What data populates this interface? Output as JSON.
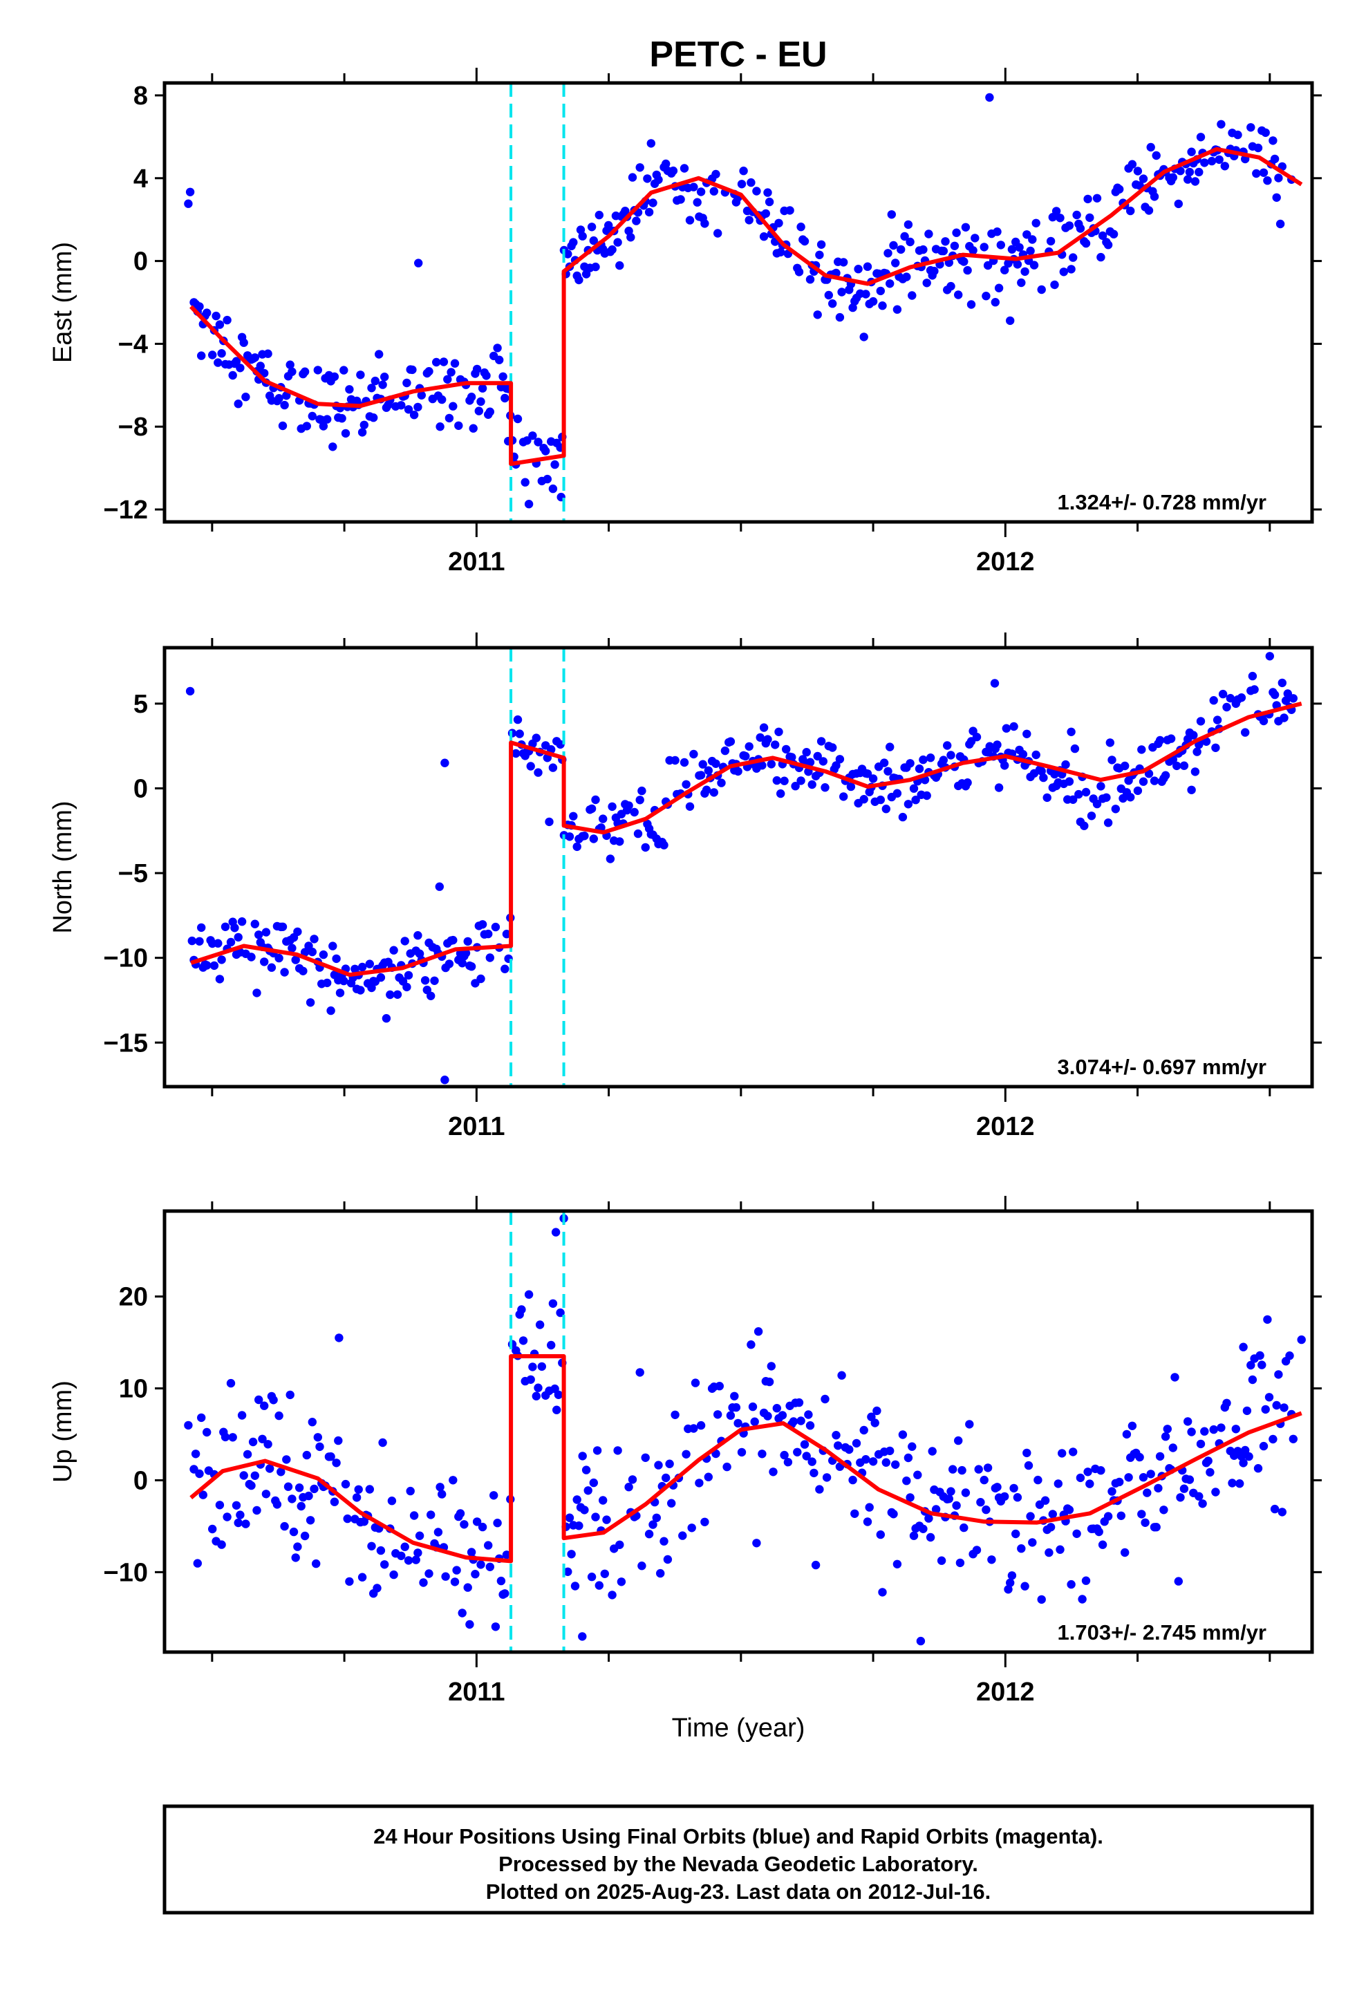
{
  "title": "PETC - EU",
  "colors": {
    "points": "#0000ff",
    "model": "#ff0000",
    "offsets": "#00e5ee",
    "frame": "#000000"
  },
  "xlabel": "Time (year)",
  "x_tick_labels": [
    "2011",
    "2012"
  ],
  "offset_epochs": [
    2011.065,
    2011.165
  ],
  "footer": [
    "24 Hour Positions Using Final Orbits (blue) and Rapid Orbits (magenta).",
    "Processed by the Nevada Geodetic Laboratory.",
    "Plotted on 2025-Aug-23. Last data on 2012-Jul-16."
  ],
  "chart_data": [
    {
      "type": "scatter",
      "ylabel": "East (mm)",
      "xlim": [
        2010.41,
        2012.58
      ],
      "ylim": [
        -12.6,
        8.6
      ],
      "yticks": [
        8,
        4,
        0,
        -4,
        -8,
        -12
      ],
      "rate_label": "1.324+/- 0.728 mm/yr",
      "scatter_amp": 0.9,
      "outliers": [
        [
          2010.89,
          -0.1
        ],
        [
          2011.97,
          7.9
        ],
        [
          2011.06,
          -8.7
        ],
        [
          2011.16,
          -11.4
        ]
      ],
      "model": [
        [
          2010.46,
          -2.2
        ],
        [
          2010.52,
          -3.8
        ],
        [
          2010.6,
          -5.8
        ],
        [
          2010.7,
          -6.9
        ],
        [
          2010.78,
          -7.0
        ],
        [
          2010.88,
          -6.3
        ],
        [
          2010.98,
          -5.9
        ],
        [
          2011.065,
          -5.9
        ],
        [
          2011.065,
          -9.8
        ],
        [
          2011.165,
          -9.4
        ],
        [
          2011.165,
          -0.5
        ],
        [
          2011.25,
          1.2
        ],
        [
          2011.33,
          3.3
        ],
        [
          2011.42,
          4.0
        ],
        [
          2011.5,
          3.2
        ],
        [
          2011.58,
          0.8
        ],
        [
          2011.66,
          -0.7
        ],
        [
          2011.74,
          -1.1
        ],
        [
          2011.82,
          -0.3
        ],
        [
          2011.92,
          0.3
        ],
        [
          2012.02,
          0.1
        ],
        [
          2012.1,
          0.4
        ],
        [
          2012.2,
          2.2
        ],
        [
          2012.3,
          4.3
        ],
        [
          2012.4,
          5.4
        ],
        [
          2012.48,
          5.0
        ],
        [
          2012.56,
          3.7
        ]
      ]
    },
    {
      "type": "scatter",
      "ylabel": "North (mm)",
      "xlim": [
        2010.41,
        2012.58
      ],
      "ylim": [
        -17.6,
        8.3
      ],
      "yticks": [
        5,
        0,
        -5,
        -10,
        -15
      ],
      "rate_label": "3.074+/- 0.697 mm/yr",
      "scatter_amp": 1.0,
      "outliers": [
        [
          2010.94,
          1.5
        ],
        [
          2010.94,
          -17.2
        ],
        [
          2010.93,
          -5.8
        ],
        [
          2011.98,
          6.2
        ],
        [
          2012.5,
          7.8
        ]
      ],
      "model": [
        [
          2010.46,
          -10.3
        ],
        [
          2010.56,
          -9.3
        ],
        [
          2010.66,
          -9.8
        ],
        [
          2010.76,
          -11.0
        ],
        [
          2010.86,
          -10.6
        ],
        [
          2010.96,
          -9.5
        ],
        [
          2011.065,
          -9.3
        ],
        [
          2011.065,
          2.7
        ],
        [
          2011.165,
          1.8
        ],
        [
          2011.165,
          -2.2
        ],
        [
          2011.24,
          -2.6
        ],
        [
          2011.32,
          -1.8
        ],
        [
          2011.4,
          -0.2
        ],
        [
          2011.48,
          1.3
        ],
        [
          2011.56,
          1.8
        ],
        [
          2011.66,
          1.0
        ],
        [
          2011.74,
          0.1
        ],
        [
          2011.82,
          0.5
        ],
        [
          2011.92,
          1.5
        ],
        [
          2012.0,
          1.9
        ],
        [
          2012.08,
          1.3
        ],
        [
          2012.18,
          0.5
        ],
        [
          2012.26,
          1.0
        ],
        [
          2012.36,
          2.8
        ],
        [
          2012.46,
          4.2
        ],
        [
          2012.56,
          5.0
        ]
      ]
    },
    {
      "type": "scatter",
      "ylabel": "Up (mm)",
      "xlim": [
        2010.41,
        2012.58
      ],
      "ylim": [
        -18.7,
        29.3
      ],
      "yticks": [
        20,
        10,
        0,
        -10
      ],
      "rate_label": "1.703+/- 2.745 mm/yr",
      "scatter_amp": 4.2,
      "outliers": [
        [
          2010.74,
          15.5
        ],
        [
          2011.15,
          27.0
        ],
        [
          2011.165,
          28.5
        ],
        [
          2011.2,
          -17.0
        ],
        [
          2011.84,
          -17.5
        ],
        [
          2012.45,
          14.5
        ],
        [
          2012.56,
          15.3
        ]
      ],
      "model": [
        [
          2010.46,
          -1.9
        ],
        [
          2010.52,
          1.0
        ],
        [
          2010.6,
          2.1
        ],
        [
          2010.7,
          0.2
        ],
        [
          2010.78,
          -3.5
        ],
        [
          2010.88,
          -6.8
        ],
        [
          2010.98,
          -8.4
        ],
        [
          2011.065,
          -8.8
        ],
        [
          2011.065,
          13.5
        ],
        [
          2011.165,
          13.5
        ],
        [
          2011.165,
          -6.3
        ],
        [
          2011.24,
          -5.7
        ],
        [
          2011.32,
          -2.6
        ],
        [
          2011.42,
          2.2
        ],
        [
          2011.5,
          5.5
        ],
        [
          2011.58,
          6.2
        ],
        [
          2011.66,
          3.3
        ],
        [
          2011.76,
          -1.0
        ],
        [
          2011.86,
          -3.6
        ],
        [
          2011.96,
          -4.5
        ],
        [
          2012.06,
          -4.6
        ],
        [
          2012.16,
          -3.6
        ],
        [
          2012.26,
          -0.7
        ],
        [
          2012.36,
          2.3
        ],
        [
          2012.46,
          5.2
        ],
        [
          2012.56,
          7.3
        ]
      ]
    }
  ]
}
